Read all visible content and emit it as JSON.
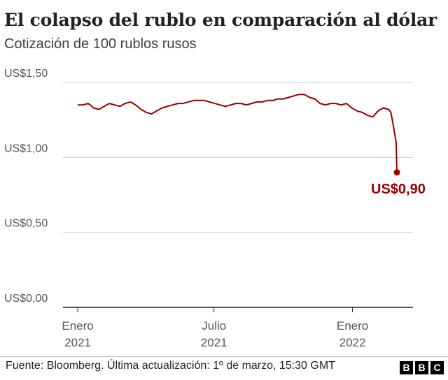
{
  "header": {
    "title": "El colapso del rublo en comparación al dólar",
    "subtitle": "Cotización de 100 rublos rusos"
  },
  "footer": {
    "source": "Fuente: Bloomberg. Última actualización: 1º de marzo, 15:30 GMT",
    "logo": [
      "B",
      "B",
      "C"
    ]
  },
  "colors": {
    "line": "#990000",
    "grid": "#cccccc",
    "axis": "#222222",
    "text": "#222222",
    "subtext": "#404040",
    "tick": "#555555"
  },
  "chart_data": {
    "type": "line",
    "title": "El colapso del rublo en comparación al dólar",
    "subtitle": "Cotización de 100 rublos rusos",
    "xlabel": "",
    "ylabel": "",
    "ylim": [
      0,
      1.5
    ],
    "xlim": [
      "2020-12-31",
      "2022-03-01"
    ],
    "y_ticks": [
      {
        "value": 1.5,
        "label": "US$1,50"
      },
      {
        "value": 1.0,
        "label": "US$1,00"
      },
      {
        "value": 0.5,
        "label": "US$0,50"
      },
      {
        "value": 0.0,
        "label": "US$0,00"
      }
    ],
    "x_ticks": [
      {
        "date": "2021-01-01",
        "label": [
          "Enero",
          "2021"
        ]
      },
      {
        "date": "2021-07-01",
        "label": [
          "Julio",
          "2021"
        ]
      },
      {
        "date": "2022-01-01",
        "label": [
          "Enero",
          "2022"
        ]
      }
    ],
    "grid": true,
    "legend": "none",
    "end_label": "US$0,90",
    "series": [
      {
        "x": [
          "2021-01-01",
          "2021-01-08",
          "2021-01-15",
          "2021-01-22",
          "2021-01-29",
          "2021-02-05",
          "2021-02-12",
          "2021-02-19",
          "2021-02-26",
          "2021-03-05",
          "2021-03-12",
          "2021-03-19",
          "2021-03-26",
          "2021-04-02",
          "2021-04-09",
          "2021-04-16",
          "2021-04-23",
          "2021-04-30",
          "2021-05-07",
          "2021-05-14",
          "2021-05-21",
          "2021-05-28",
          "2021-06-04",
          "2021-06-11",
          "2021-06-18",
          "2021-06-25",
          "2021-07-02",
          "2021-07-09",
          "2021-07-16",
          "2021-07-23",
          "2021-07-30",
          "2021-08-06",
          "2021-08-13",
          "2021-08-20",
          "2021-08-27",
          "2021-09-03",
          "2021-09-10",
          "2021-09-17",
          "2021-09-24",
          "2021-10-01",
          "2021-10-08",
          "2021-10-15",
          "2021-10-22",
          "2021-10-29",
          "2021-11-05",
          "2021-11-12",
          "2021-11-19",
          "2021-11-26",
          "2021-12-03",
          "2021-12-10",
          "2021-12-17",
          "2021-12-24",
          "2021-12-31",
          "2022-01-07",
          "2022-01-14",
          "2022-01-21",
          "2022-01-28",
          "2022-02-04",
          "2022-02-11",
          "2022-02-18",
          "2022-02-21",
          "2022-02-24",
          "2022-02-28",
          "2022-03-01"
        ],
        "y": [
          1.35,
          1.35,
          1.36,
          1.33,
          1.32,
          1.34,
          1.36,
          1.35,
          1.34,
          1.36,
          1.37,
          1.35,
          1.32,
          1.3,
          1.29,
          1.31,
          1.33,
          1.34,
          1.35,
          1.36,
          1.36,
          1.37,
          1.38,
          1.38,
          1.38,
          1.37,
          1.36,
          1.35,
          1.34,
          1.35,
          1.36,
          1.36,
          1.35,
          1.36,
          1.37,
          1.37,
          1.38,
          1.38,
          1.39,
          1.39,
          1.4,
          1.41,
          1.42,
          1.42,
          1.4,
          1.39,
          1.36,
          1.35,
          1.36,
          1.36,
          1.35,
          1.36,
          1.33,
          1.31,
          1.3,
          1.28,
          1.27,
          1.31,
          1.33,
          1.32,
          1.3,
          1.22,
          1.1,
          0.9
        ]
      }
    ]
  }
}
